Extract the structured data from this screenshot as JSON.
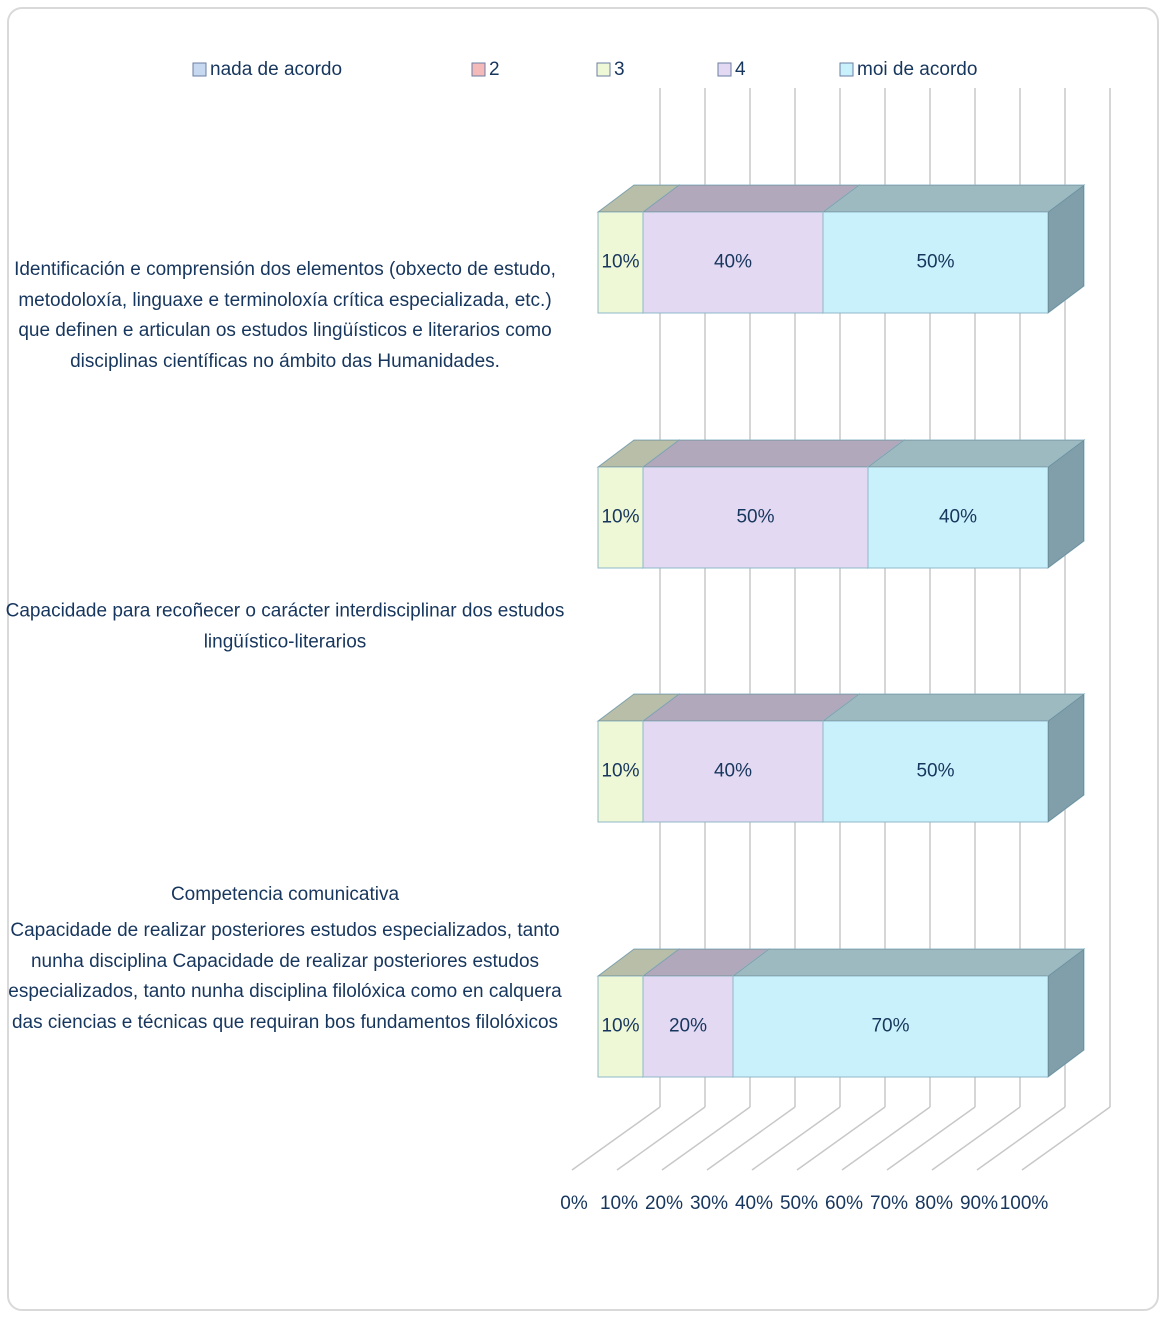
{
  "chart_data": {
    "type": "bar3d_stacked_horizontal",
    "categories": [
      "Identificación e comprensión dos elementos (obxecto de estudo, metodoloxía, linguaxe e terminoloxía crítica especializada, etc.) que definen e articulan os estudos lingüísticos e literarios como disciplinas científicas no ámbito das Humanidades.",
      "Capacidade para recoñecer o carácter interdisciplinar dos estudos lingüístico-literarios",
      "Competencia comunicativa",
      "Capacidade de realizar posteriores estudos especializados, tanto nunha disciplina Capacidade de realizar posteriores estudos especializados, tanto nunha disciplina filolóxica como en calquera das ciencias e técnicas que requiran bos fundamentos filolóxicos"
    ],
    "series": [
      {
        "name": "nada de acordo",
        "color": "#c6d9f1",
        "values": [
          0,
          0,
          0,
          0
        ]
      },
      {
        "name": "2",
        "color": "#f4b9b9",
        "values": [
          0,
          0,
          0,
          0
        ]
      },
      {
        "name": "3",
        "color": "#eef7d6",
        "values": [
          10,
          10,
          10,
          10
        ],
        "value_labels": [
          "10%",
          "10%",
          "10%",
          "10%"
        ]
      },
      {
        "name": "4",
        "color": "#e4d9f3",
        "values": [
          40,
          50,
          40,
          20
        ],
        "value_labels": [
          "40%",
          "50%",
          "40%",
          "20%"
        ]
      },
      {
        "name": "moi de acordo",
        "color": "#c9f1fb",
        "values": [
          50,
          40,
          50,
          70
        ],
        "value_labels": [
          "50%",
          "40%",
          "50%",
          "70%"
        ]
      }
    ],
    "xlim": [
      0,
      100
    ],
    "xticks": [
      {
        "value": 0,
        "label": "0%"
      },
      {
        "value": 10,
        "label": "10%"
      },
      {
        "value": 20,
        "label": "20%"
      },
      {
        "value": 30,
        "label": "30%"
      },
      {
        "value": 40,
        "label": "40%"
      },
      {
        "value": 50,
        "label": "50%"
      },
      {
        "value": 60,
        "label": "60%"
      },
      {
        "value": 70,
        "label": "70%"
      },
      {
        "value": 80,
        "label": "80%"
      },
      {
        "value": 90,
        "label": "90%"
      },
      {
        "value": 100,
        "label": "100%"
      }
    ],
    "grid": true,
    "legend": "top"
  }
}
